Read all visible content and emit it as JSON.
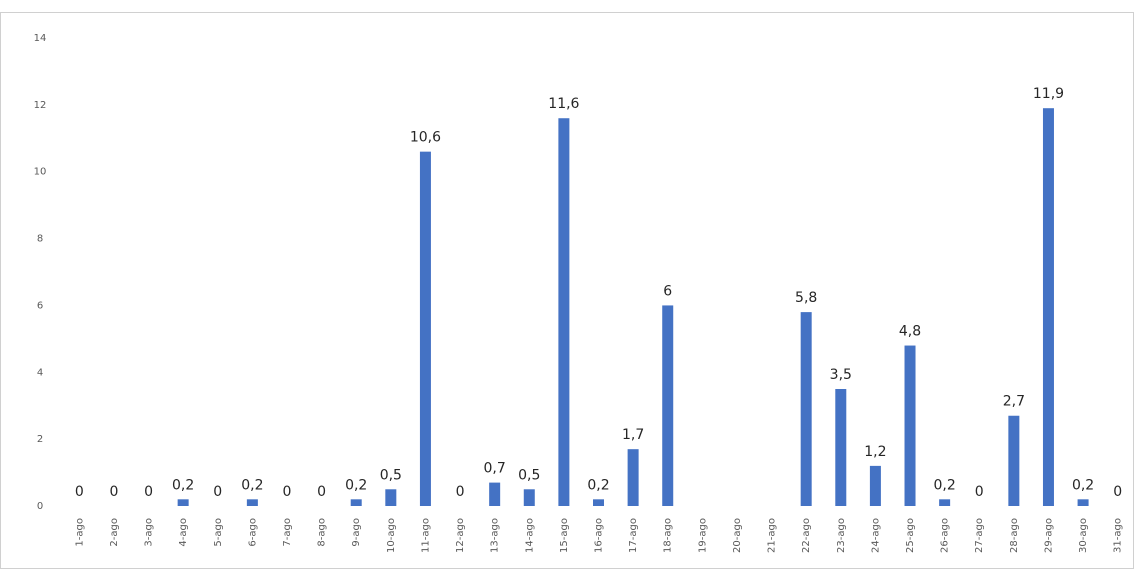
{
  "chart_data": {
    "type": "bar",
    "title": "",
    "xlabel": "",
    "ylabel": "",
    "ylim": [
      0,
      14
    ],
    "yticks": [
      0,
      2,
      4,
      6,
      8,
      10,
      12,
      14
    ],
    "grid": false,
    "legend": "none",
    "bar_color": "#4472c4",
    "categories": [
      "1-ago",
      "2-ago",
      "3-ago",
      "4-ago",
      "5-ago",
      "6-ago",
      "7-ago",
      "8-ago",
      "9-ago",
      "10-ago",
      "11-ago",
      "12-ago",
      "13-ago",
      "14-ago",
      "15-ago",
      "16-ago",
      "17-ago",
      "18-ago",
      "19-ago",
      "20-ago",
      "21-ago",
      "22-ago",
      "23-ago",
      "24-ago",
      "25-ago",
      "26-ago",
      "27-ago",
      "28-ago",
      "29-ago",
      "30-ago",
      "31-ago"
    ],
    "values": [
      0,
      0,
      0,
      0.2,
      0,
      0.2,
      0,
      0,
      0.2,
      0.5,
      10.6,
      0,
      0.7,
      0.5,
      11.6,
      0.2,
      1.7,
      6,
      null,
      null,
      null,
      5.8,
      3.5,
      1.2,
      4.8,
      0.2,
      0,
      2.7,
      11.9,
      0.2,
      0
    ],
    "data_labels": [
      "0",
      "0",
      "0",
      "0,2",
      "0",
      "0,2",
      "0",
      "0",
      "0,2",
      "0,5",
      "10,6",
      "0",
      "0,7",
      "0,5",
      "11,6",
      "0,2",
      "1,7",
      "6",
      "",
      "",
      "",
      "5,8",
      "3,5",
      "1,2",
      "4,8",
      "0,2",
      "0",
      "2,7",
      "11,9",
      "0,2",
      "0"
    ]
  }
}
